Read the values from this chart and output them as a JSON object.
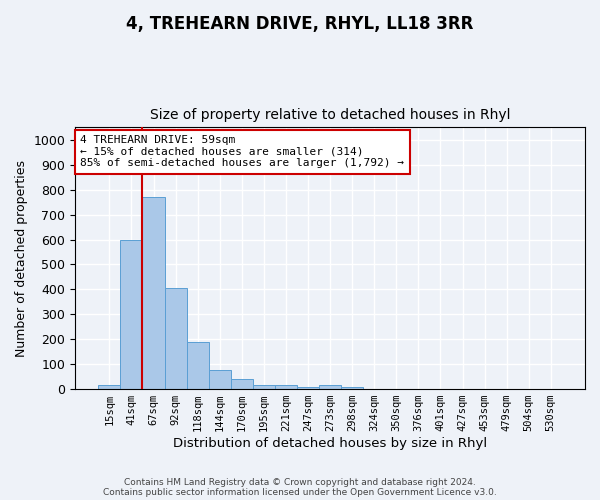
{
  "title": "4, TREHEARN DRIVE, RHYL, LL18 3RR",
  "subtitle": "Size of property relative to detached houses in Rhyl",
  "xlabel": "Distribution of detached houses by size in Rhyl",
  "ylabel": "Number of detached properties",
  "bar_labels": [
    "15sqm",
    "41sqm",
    "67sqm",
    "92sqm",
    "118sqm",
    "144sqm",
    "170sqm",
    "195sqm",
    "221sqm",
    "247sqm",
    "273sqm",
    "298sqm",
    "324sqm",
    "350sqm",
    "376sqm",
    "401sqm",
    "427sqm",
    "453sqm",
    "479sqm",
    "504sqm",
    "530sqm"
  ],
  "bar_values": [
    15,
    600,
    770,
    405,
    190,
    78,
    40,
    18,
    17,
    10,
    15,
    8,
    0,
    0,
    0,
    0,
    0,
    0,
    0,
    0,
    0
  ],
  "bar_color": "#aac8e8",
  "bar_edge_color": "#5a9fd4",
  "vline_color": "#cc0000",
  "annotation_text": "4 TREHEARN DRIVE: 59sqm\n← 15% of detached houses are smaller (314)\n85% of semi-detached houses are larger (1,792) →",
  "annotation_box_color": "#ffffff",
  "annotation_box_edge": "#cc0000",
  "ylim": [
    0,
    1050
  ],
  "yticks": [
    0,
    100,
    200,
    300,
    400,
    500,
    600,
    700,
    800,
    900,
    1000
  ],
  "footer": "Contains HM Land Registry data © Crown copyright and database right 2024.\nContains public sector information licensed under the Open Government Licence v3.0.",
  "background_color": "#eef2f8",
  "plot_bg_color": "#eef2f8",
  "title_fontsize": 12,
  "subtitle_fontsize": 10,
  "grid_color": "#ffffff"
}
